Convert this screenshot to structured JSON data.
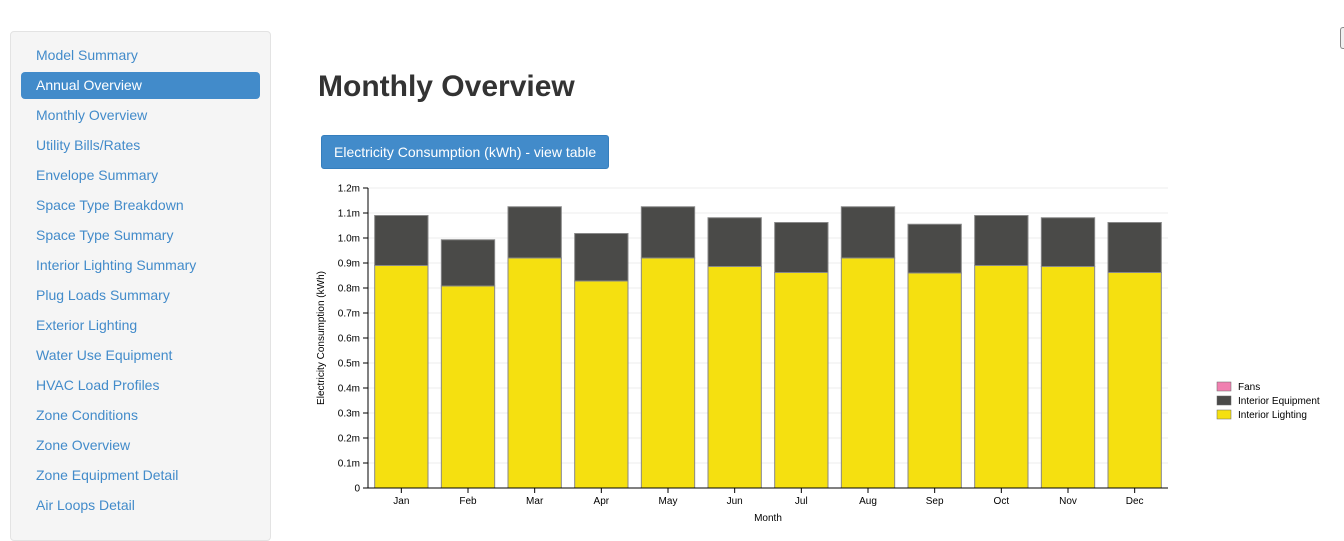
{
  "sidebar": {
    "items": [
      {
        "label": "Model Summary",
        "active": false
      },
      {
        "label": "Annual Overview",
        "active": true
      },
      {
        "label": "Monthly Overview",
        "active": false
      },
      {
        "label": "Utility Bills/Rates",
        "active": false
      },
      {
        "label": "Envelope Summary",
        "active": false
      },
      {
        "label": "Space Type Breakdown",
        "active": false
      },
      {
        "label": "Space Type Summary",
        "active": false
      },
      {
        "label": "Interior Lighting Summary",
        "active": false
      },
      {
        "label": "Plug Loads Summary",
        "active": false
      },
      {
        "label": "Exterior Lighting",
        "active": false
      },
      {
        "label": "Water Use Equipment",
        "active": false
      },
      {
        "label": "HVAC Load Profiles",
        "active": false
      },
      {
        "label": "Zone Conditions",
        "active": false
      },
      {
        "label": "Zone Overview",
        "active": false
      },
      {
        "label": "Zone Equipment Detail",
        "active": false
      },
      {
        "label": "Air Loops Detail",
        "active": false
      }
    ]
  },
  "main": {
    "title": "Monthly Overview",
    "view_table_button": "Electricity Consumption (kWh) - view table"
  },
  "colors": {
    "Fans": "#f080b0",
    "Interior Equipment": "#4a4a48",
    "Interior Lighting": "#f5e010"
  },
  "chart_data": {
    "type": "bar",
    "stacked": true,
    "categories": [
      "Jan",
      "Feb",
      "Mar",
      "Apr",
      "May",
      "Jun",
      "Jul",
      "Aug",
      "Sep",
      "Oct",
      "Nov",
      "Dec"
    ],
    "series": [
      {
        "name": "Fans",
        "values": [
          0,
          0,
          0,
          0,
          0,
          0,
          0,
          0,
          0,
          0,
          0,
          0
        ]
      },
      {
        "name": "Interior Equipment",
        "values": [
          200000,
          185000,
          205000,
          190000,
          205000,
          195000,
          200000,
          205000,
          195000,
          200000,
          195000,
          200000
        ]
      },
      {
        "name": "Interior Lighting",
        "values": [
          890000,
          808000,
          920000,
          828000,
          920000,
          886000,
          862000,
          920000,
          860000,
          890000,
          886000,
          862000
        ]
      }
    ],
    "xlabel": "Month",
    "ylabel": "Electricity Consumption (kWh)",
    "ylim": [
      0,
      1200000
    ],
    "yticks": [
      "0",
      "0.1m",
      "0.2m",
      "0.3m",
      "0.4m",
      "0.5m",
      "0.6m",
      "0.7m",
      "0.8m",
      "0.9m",
      "1.0m",
      "1.1m",
      "1.2m"
    ],
    "grid": true,
    "legend": {
      "position": "right",
      "entries": [
        "Fans",
        "Interior Equipment",
        "Interior Lighting"
      ]
    }
  }
}
